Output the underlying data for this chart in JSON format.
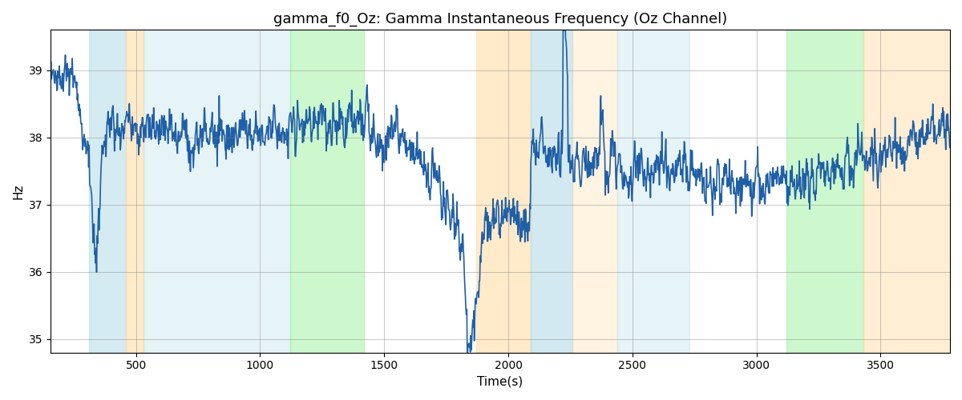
{
  "title": "gamma_f0_Oz: Gamma Instantaneous Frequency (Oz Channel)",
  "xlabel": "Time(s)",
  "ylabel": "Hz",
  "xlim": [
    155,
    3780
  ],
  "ylim": [
    34.8,
    39.6
  ],
  "yticks": [
    35,
    36,
    37,
    38,
    39
  ],
  "xticks": [
    500,
    1000,
    1500,
    2000,
    2500,
    3000,
    3500
  ],
  "line_color": "#1f5fa6",
  "line_width": 1.2,
  "bg_regions": [
    {
      "start": 310,
      "end": 460,
      "color": "#add8e6",
      "alpha": 0.5
    },
    {
      "start": 460,
      "end": 530,
      "color": "#ffd9a0",
      "alpha": 0.55
    },
    {
      "start": 530,
      "end": 1120,
      "color": "#add8e6",
      "alpha": 0.3
    },
    {
      "start": 1120,
      "end": 1420,
      "color": "#90ee90",
      "alpha": 0.45
    },
    {
      "start": 1870,
      "end": 2090,
      "color": "#ffd9a0",
      "alpha": 0.55
    },
    {
      "start": 2090,
      "end": 2260,
      "color": "#add8e6",
      "alpha": 0.55
    },
    {
      "start": 2260,
      "end": 2440,
      "color": "#ffd9a0",
      "alpha": 0.3
    },
    {
      "start": 2440,
      "end": 2730,
      "color": "#add8e6",
      "alpha": 0.3
    },
    {
      "start": 3120,
      "end": 3430,
      "color": "#90ee90",
      "alpha": 0.45
    },
    {
      "start": 3430,
      "end": 3780,
      "color": "#ffd9a0",
      "alpha": 0.45
    }
  ],
  "figsize": [
    12,
    5
  ],
  "dpi": 100,
  "title_fontsize": 13,
  "label_fontsize": 11,
  "seed": 17
}
